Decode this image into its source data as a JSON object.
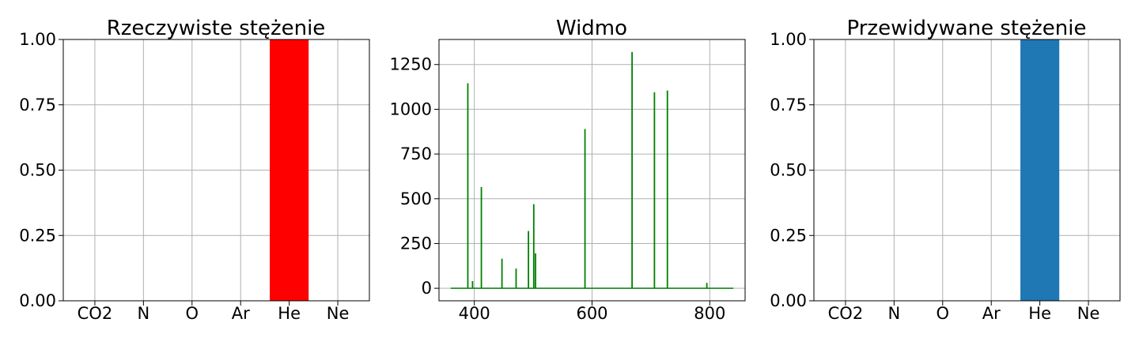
{
  "colors": {
    "actual_bar": "#ff0000",
    "predicted_bar": "#1f77b4",
    "spectrum_line": "#008000",
    "grid": "#b0b0b0",
    "axes": "#000000"
  },
  "chart_data": [
    {
      "type": "bar",
      "title": "Rzeczywiste stężenie",
      "xlabel": "",
      "ylabel": "",
      "categories": [
        "CO2",
        "N",
        "O",
        "Ar",
        "He",
        "Ne"
      ],
      "values": [
        0,
        0,
        0,
        0,
        1.0,
        0
      ],
      "ylim": [
        0,
        1.0
      ],
      "yticks": [
        "0.00",
        "0.25",
        "0.50",
        "0.75",
        "1.00"
      ],
      "grid": true,
      "legend": "none"
    },
    {
      "type": "line",
      "title": "Widmo",
      "xlabel": "",
      "ylabel": "",
      "xlim": [
        340,
        860
      ],
      "ylim": [
        -70,
        1390
      ],
      "xticks": [
        "400",
        "600",
        "800"
      ],
      "yticks": [
        "0",
        "250",
        "500",
        "750",
        "1000",
        "1250"
      ],
      "x_range": [
        360,
        840
      ],
      "peaks": [
        {
          "x": 389,
          "y": 1145
        },
        {
          "x": 397,
          "y": 40
        },
        {
          "x": 412,
          "y": 565
        },
        {
          "x": 447,
          "y": 165
        },
        {
          "x": 471,
          "y": 110
        },
        {
          "x": 492,
          "y": 320
        },
        {
          "x": 501,
          "y": 470
        },
        {
          "x": 504,
          "y": 195
        },
        {
          "x": 588,
          "y": 890
        },
        {
          "x": 668,
          "y": 1320
        },
        {
          "x": 706,
          "y": 1095
        },
        {
          "x": 728,
          "y": 1105
        },
        {
          "x": 795,
          "y": 30
        }
      ],
      "grid": true,
      "legend": "none"
    },
    {
      "type": "bar",
      "title": "Przewidywane stężenie",
      "xlabel": "",
      "ylabel": "",
      "categories": [
        "CO2",
        "N",
        "O",
        "Ar",
        "He",
        "Ne"
      ],
      "values": [
        0,
        0,
        0,
        0,
        1.0,
        0
      ],
      "ylim": [
        0,
        1.0
      ],
      "yticks": [
        "0.00",
        "0.25",
        "0.50",
        "0.75",
        "1.00"
      ],
      "grid": true,
      "legend": "none"
    }
  ]
}
